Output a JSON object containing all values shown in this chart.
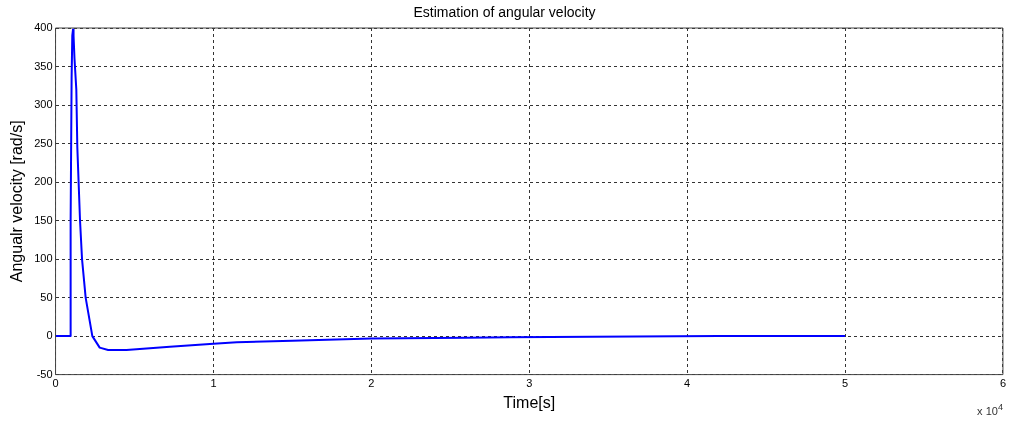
{
  "chart_data": {
    "type": "line",
    "title": "Estimation of angular velocity",
    "xlabel": "Time[s]",
    "ylabel": "Angualr velocity [rad/s]",
    "annotations": [
      "x 10$^{4}$"
    ],
    "x": [
      0,
      0.095,
      0.0955,
      0.1017,
      0.106,
      0.1105,
      0.114,
      0.12,
      0.1315,
      0.1379,
      0.155,
      0.1677,
      0.1906,
      0.233,
      0.2795,
      0.3329,
      0.449,
      0.7243,
      1,
      1.148,
      1.5,
      2,
      2.6,
      3.4,
      4.2,
      5
    ],
    "series": [
      {
        "color": "#0000ff",
        "values": [
          0,
          0,
          150,
          335,
          390,
          398,
          390,
          360,
          320,
          245,
          150,
          100,
          50,
          0,
          -15,
          -18,
          -18,
          -14,
          -10,
          -8,
          -6,
          -3,
          -2,
          -1,
          0,
          0
        ]
      }
    ],
    "xlim": [
      0,
      6
    ],
    "xticks": [
      0,
      1,
      2,
      3,
      4,
      5,
      6
    ],
    "ylim": [
      -50,
      400
    ],
    "yticks": [
      -50,
      0,
      50,
      100,
      150,
      200,
      250,
      300,
      350,
      400
    ],
    "grid": true,
    "legend": false,
    "marker": "none",
    "line_style": "solid"
  }
}
